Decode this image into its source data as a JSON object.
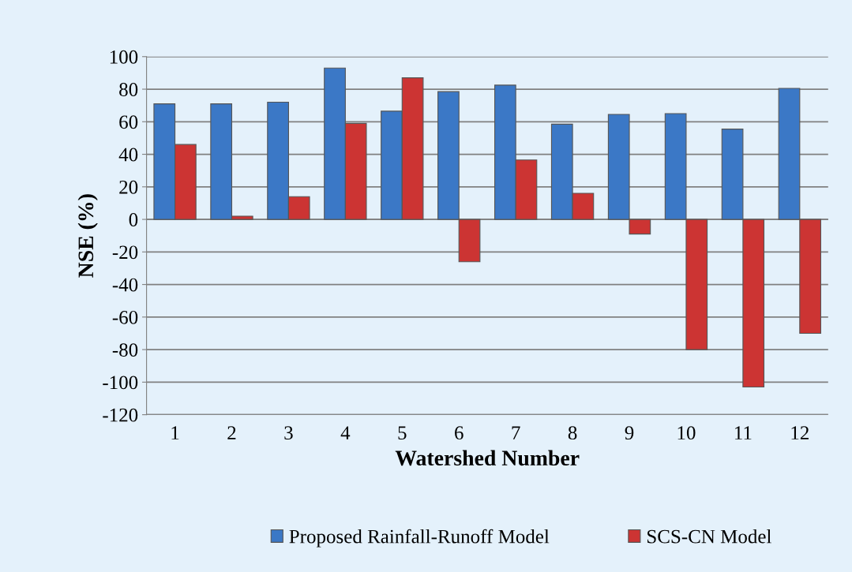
{
  "chart_data": {
    "type": "bar",
    "xlabel": "Watershed Number",
    "ylabel": "NSE (%)",
    "categories": [
      "1",
      "2",
      "3",
      "4",
      "5",
      "6",
      "7",
      "8",
      "9",
      "10",
      "11",
      "12"
    ],
    "series": [
      {
        "name": "Proposed Rainfall-Runoff Model",
        "color": "#3b78c6",
        "values": [
          71,
          71,
          72,
          93,
          66.5,
          78.5,
          82.5,
          58.5,
          64.5,
          65,
          55.5,
          80.5
        ]
      },
      {
        "name": "SCS-CN Model",
        "color": "#cc3433",
        "values": [
          46,
          2,
          14,
          59,
          87,
          -26,
          36.5,
          16,
          -9,
          -80,
          -103,
          -70
        ]
      }
    ],
    "ylim": [
      -120,
      100
    ],
    "yticks": [
      -120,
      -100,
      -80,
      -60,
      -40,
      -20,
      0,
      20,
      40,
      60,
      80,
      100
    ],
    "grid": "y",
    "legend": "bottom"
  }
}
